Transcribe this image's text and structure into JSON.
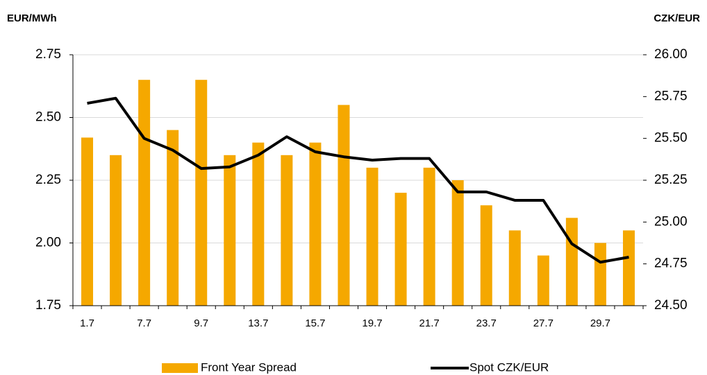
{
  "chart_data": {
    "type": "bar",
    "y_axis_label": "EUR/MWh",
    "y2_axis_label": "CZK/EUR",
    "categories": [
      "1.7",
      null,
      "7.7",
      null,
      "9.7",
      null,
      "13.7",
      null,
      "15.7",
      null,
      "19.7",
      null,
      "21.7",
      null,
      "23.7",
      null,
      "27.7",
      null,
      "29.7",
      null
    ],
    "series": [
      {
        "name": "Front Year Spread",
        "type": "bar",
        "color": "#f5a800",
        "axis": "y",
        "values": [
          2.42,
          2.35,
          2.65,
          2.45,
          2.65,
          2.35,
          2.4,
          2.35,
          2.4,
          2.55,
          2.3,
          2.2,
          2.3,
          2.25,
          2.15,
          2.05,
          1.95,
          2.1,
          2.0,
          2.05
        ]
      },
      {
        "name": "Spot CZK/EUR",
        "type": "line",
        "color": "#000000",
        "axis": "y2",
        "values": [
          25.71,
          25.74,
          25.5,
          25.43,
          25.32,
          25.33,
          25.4,
          25.51,
          25.42,
          25.39,
          25.37,
          25.38,
          25.38,
          25.18,
          25.18,
          25.13,
          25.13,
          24.87,
          24.76,
          24.79
        ]
      }
    ],
    "ylim": [
      1.75,
      2.75
    ],
    "yticks": [
      1.75,
      {
        "value": 2.0,
        "label": "2.00"
      },
      2.25,
      {
        "value": 2.5,
        "label": "2.50"
      },
      2.75
    ],
    "y2lim": [
      24.5,
      26.0
    ],
    "y2ticks": [
      {
        "value": 24.5,
        "label": "24.50"
      },
      24.75,
      {
        "value": 25.0,
        "label": "25.00"
      },
      25.25,
      {
        "value": 25.5,
        "label": "25.50"
      },
      25.75,
      {
        "value": 26.0,
        "label": "26.00"
      }
    ],
    "grid": true,
    "legend": "bottom"
  }
}
